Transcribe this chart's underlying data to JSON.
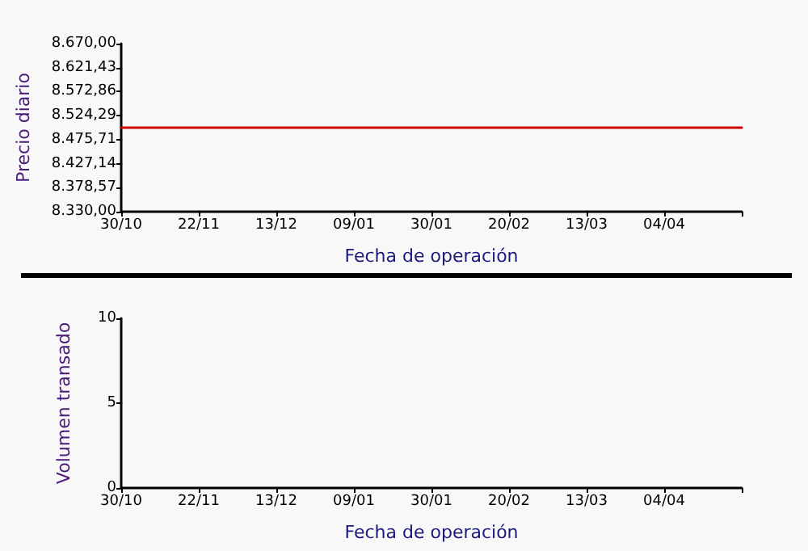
{
  "chart_data": [
    {
      "type": "line",
      "xlabel": "Fecha de operación",
      "ylabel": "Precio diario",
      "categories": [
        "30/10",
        "22/11",
        "13/12",
        "09/01",
        "30/01",
        "20/02",
        "13/03",
        "04/04",
        null
      ],
      "series": [
        {
          "color": "#cc0000",
          "values": [
            8500,
            8500,
            8500,
            8500,
            8500,
            8500,
            8500,
            8500,
            8500
          ]
        }
      ],
      "ylim": [
        8330,
        8670
      ],
      "yticks": [
        {
          "value": 8330,
          "label": "8.330,00"
        },
        {
          "value": 8378.57,
          "label": "8.378,57"
        },
        {
          "value": 8427.14,
          "label": "8.427,14"
        },
        {
          "value": 8475.71,
          "label": "8.475,71"
        },
        {
          "value": 8524.29,
          "label": "8.524,29"
        },
        {
          "value": 8572.86,
          "label": "8.572,86"
        },
        {
          "value": 8621.43,
          "label": "8.621,43"
        },
        {
          "value": 8670,
          "label": "8.670,00"
        }
      ],
      "grid": false,
      "marker": "none"
    },
    {
      "type": "bar",
      "xlabel": "Fecha de operación",
      "ylabel": "Volumen transado",
      "categories": [
        "30/10",
        "22/11",
        "13/12",
        "09/01",
        "30/01",
        "20/02",
        "13/03",
        "04/04",
        null
      ],
      "series": [
        {
          "color": "#0000cc",
          "values": [
            null,
            null,
            null,
            null,
            null,
            null,
            null,
            null,
            null
          ]
        }
      ],
      "ylim": [
        0,
        10
      ],
      "yticks": [
        0,
        5,
        10
      ],
      "grid": false
    }
  ]
}
